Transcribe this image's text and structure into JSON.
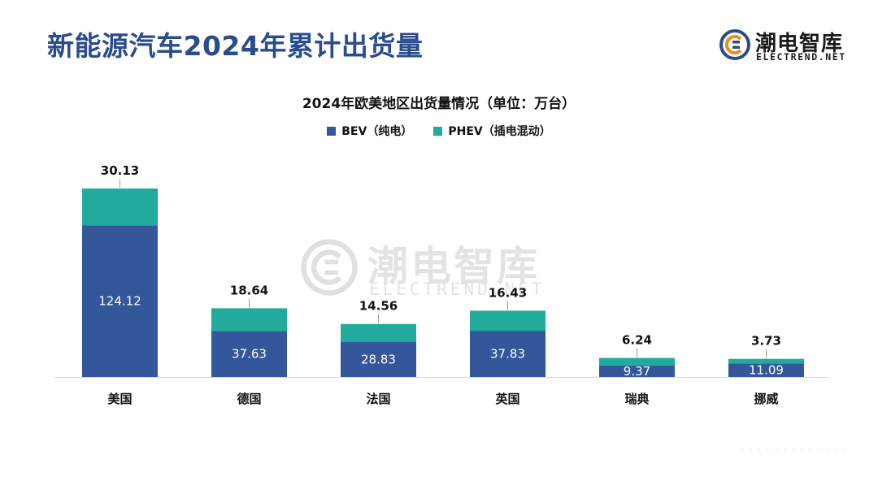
{
  "header": {
    "title": "新能源汽车2024年累计出货量"
  },
  "brand": {
    "name_cn": "潮电智库",
    "name_en": "ELECTREND.NET",
    "icon": "ce-logo-icon"
  },
  "watermark": {
    "name_cn": "潮电智库",
    "name_en": "ELECTREND.NET"
  },
  "chart_data": {
    "type": "bar",
    "stacked": true,
    "title": "2024年欧美地区出货量情况（单位：万台）",
    "categories": [
      "美国",
      "德国",
      "法国",
      "英国",
      "瑞典",
      "挪威"
    ],
    "series": [
      {
        "name": "BEV（纯电）",
        "color": "#33579a",
        "values": [
          124.12,
          37.63,
          28.83,
          37.83,
          9.37,
          11.09
        ]
      },
      {
        "name": "PHEV（插电混动）",
        "color": "#22aa9c",
        "values": [
          30.13,
          18.64,
          14.56,
          16.43,
          6.24,
          3.73
        ]
      }
    ],
    "ylim": [
      0,
      154.25
    ],
    "legend_position": "top",
    "grid": false
  }
}
